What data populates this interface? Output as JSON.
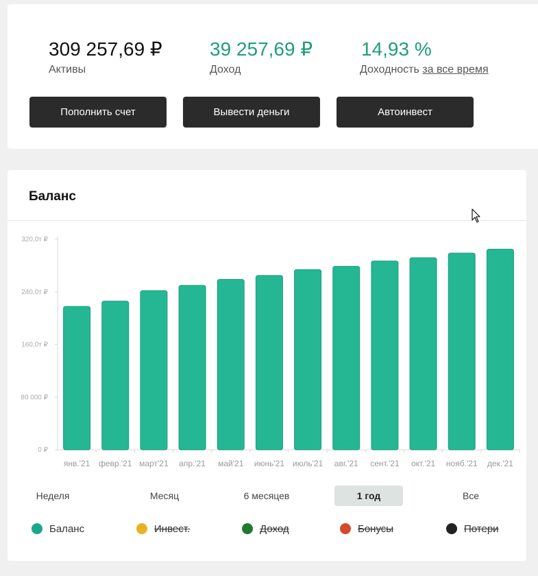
{
  "summary": {
    "assets": {
      "value": "309 257,69 ₽",
      "label": "Активы"
    },
    "income": {
      "value": "39 257,69 ₽",
      "label": "Доход"
    },
    "yield": {
      "value": "14,93 %",
      "label": "Доходность",
      "link": "за все время"
    },
    "buttons": {
      "deposit": "Пополнить счет",
      "withdraw": "Вывести деньги",
      "autoinvest": "Автоинвест"
    }
  },
  "balance": {
    "title": "Баланс",
    "periods": [
      "Неделя",
      "Месяц",
      "6 месяцев",
      "1 год",
      "Все"
    ],
    "active_period": "1 год",
    "legend": [
      {
        "label": "Баланс",
        "color": "#1aa78b",
        "enabled": true
      },
      {
        "label": "Инвест.",
        "color": "#e6b422",
        "enabled": false
      },
      {
        "label": "Доход",
        "color": "#1e7a2e",
        "enabled": false
      },
      {
        "label": "Бонусы",
        "color": "#d24a2a",
        "enabled": false
      },
      {
        "label": "Потери",
        "color": "#222222",
        "enabled": false
      }
    ]
  },
  "colors": {
    "accent_green": "#1f9e7a",
    "bar_fill": "#25b794",
    "bar_stroke": "#1c9c7c"
  },
  "chart_data": {
    "type": "bar",
    "categories": [
      "янв.'21",
      "февр.'21",
      "март'21",
      "апр.'21",
      "май'21",
      "июнь'21",
      "июль'21",
      "авг.'21",
      "сент.'21",
      "окт.'21",
      "нояб.'21",
      "дек.'21"
    ],
    "values": [
      218000,
      226000,
      242000,
      250000,
      259000,
      265000,
      274000,
      279000,
      287000,
      292000,
      299000,
      305000
    ],
    "yticks": [
      {
        "value": 0,
        "label": "0 ₽"
      },
      {
        "value": 80000,
        "label": "80 000 ₽"
      },
      {
        "value": 160000,
        "label": "160,0т ₽"
      },
      {
        "value": 240000,
        "label": "240,0т ₽"
      },
      {
        "value": 320000,
        "label": "320,0т ₽"
      }
    ],
    "ylim": [
      0,
      320000
    ],
    "grid": false,
    "title": "",
    "xlabel": "",
    "ylabel": ""
  }
}
